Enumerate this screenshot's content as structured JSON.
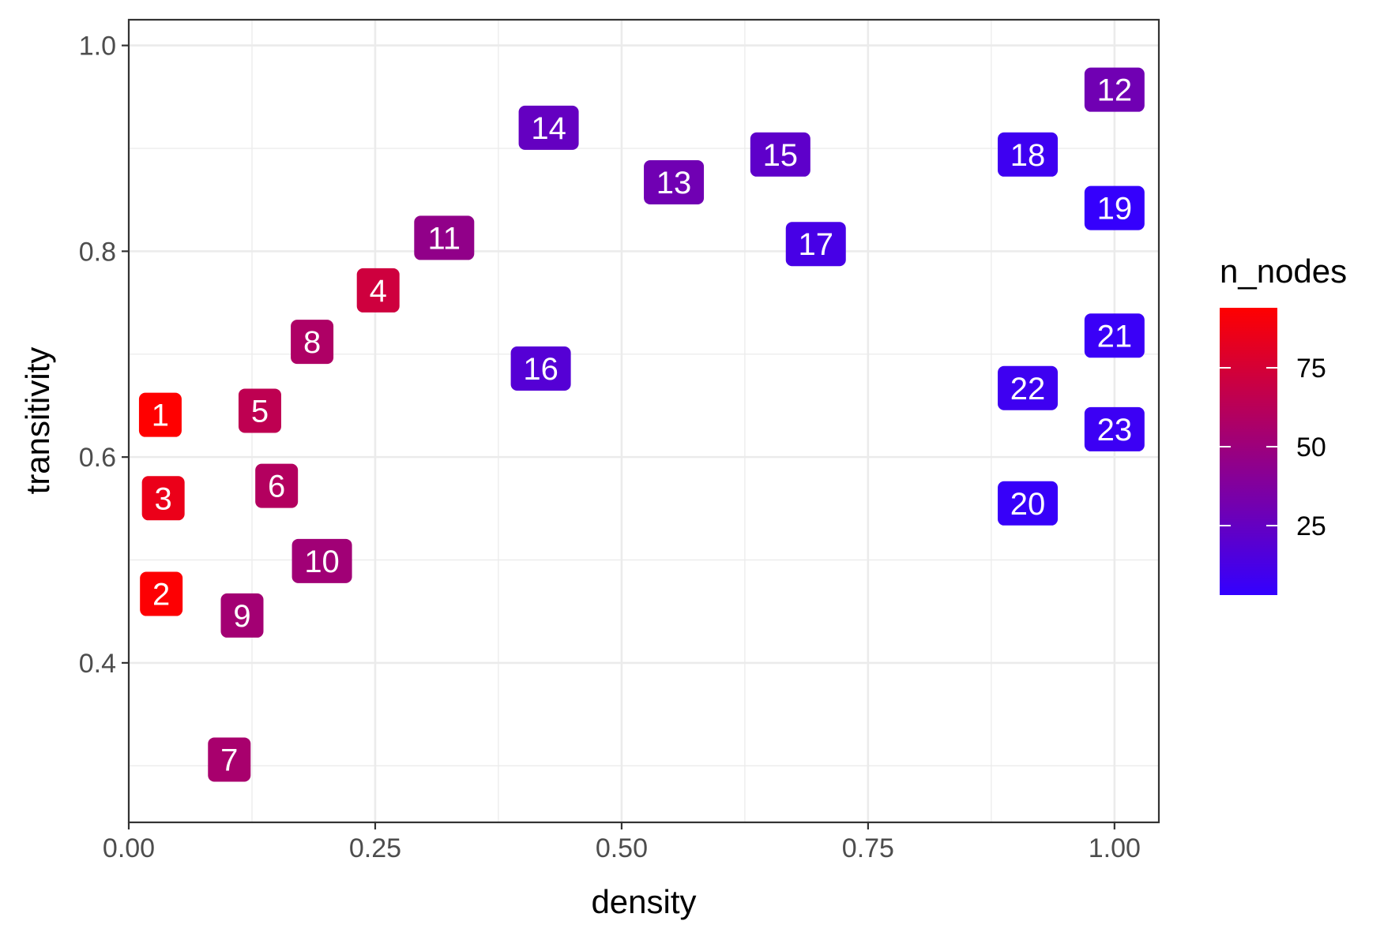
{
  "chart_data": {
    "type": "scatter",
    "title": "",
    "xlabel": "density",
    "ylabel": "transitivity",
    "xlim": [
      0.0,
      1.045
    ],
    "ylim": [
      0.245,
      1.025
    ],
    "x_ticks": [
      0.0,
      0.25,
      0.5,
      0.75,
      1.0
    ],
    "x_tick_labels": [
      "0.00",
      "0.25",
      "0.50",
      "0.75",
      "1.00"
    ],
    "y_ticks": [
      0.4,
      0.6,
      0.8,
      1.0
    ],
    "y_tick_labels": [
      "0.4",
      "0.6",
      "0.8",
      "1.0"
    ],
    "grid": true,
    "legend": {
      "title": "n_nodes",
      "position": "right",
      "range": [
        3,
        94
      ],
      "ticks": [
        25,
        50,
        75
      ],
      "tick_labels": [
        "25",
        "50",
        "75"
      ],
      "color_low": "#3300ff",
      "color_high": "#ff0000"
    },
    "points": [
      {
        "label": "1",
        "x": 0.032,
        "y": 0.641,
        "n_nodes": 94
      },
      {
        "label": "2",
        "x": 0.033,
        "y": 0.467,
        "n_nodes": 93
      },
      {
        "label": "3",
        "x": 0.035,
        "y": 0.56,
        "n_nodes": 85
      },
      {
        "label": "4",
        "x": 0.253,
        "y": 0.762,
        "n_nodes": 72
      },
      {
        "label": "5",
        "x": 0.133,
        "y": 0.645,
        "n_nodes": 65
      },
      {
        "label": "6",
        "x": 0.15,
        "y": 0.572,
        "n_nodes": 60
      },
      {
        "label": "7",
        "x": 0.102,
        "y": 0.306,
        "n_nodes": 55
      },
      {
        "label": "8",
        "x": 0.186,
        "y": 0.712,
        "n_nodes": 58
      },
      {
        "label": "9",
        "x": 0.115,
        "y": 0.446,
        "n_nodes": 53
      },
      {
        "label": "10",
        "x": 0.196,
        "y": 0.499,
        "n_nodes": 52
      },
      {
        "label": "11",
        "x": 0.32,
        "y": 0.813,
        "n_nodes": 45
      },
      {
        "label": "12",
        "x": 1.0,
        "y": 0.957,
        "n_nodes": 30
      },
      {
        "label": "13",
        "x": 0.553,
        "y": 0.867,
        "n_nodes": 30
      },
      {
        "label": "14",
        "x": 0.426,
        "y": 0.92,
        "n_nodes": 25
      },
      {
        "label": "15",
        "x": 0.661,
        "y": 0.894,
        "n_nodes": 22
      },
      {
        "label": "16",
        "x": 0.418,
        "y": 0.686,
        "n_nodes": 18
      },
      {
        "label": "17",
        "x": 0.697,
        "y": 0.807,
        "n_nodes": 12
      },
      {
        "label": "18",
        "x": 0.912,
        "y": 0.894,
        "n_nodes": 8
      },
      {
        "label": "19",
        "x": 1.0,
        "y": 0.842,
        "n_nodes": 4
      },
      {
        "label": "20",
        "x": 0.912,
        "y": 0.555,
        "n_nodes": 5
      },
      {
        "label": "21",
        "x": 1.0,
        "y": 0.718,
        "n_nodes": 6
      },
      {
        "label": "22",
        "x": 0.912,
        "y": 0.667,
        "n_nodes": 8
      },
      {
        "label": "23",
        "x": 1.0,
        "y": 0.627,
        "n_nodes": 7
      }
    ]
  }
}
